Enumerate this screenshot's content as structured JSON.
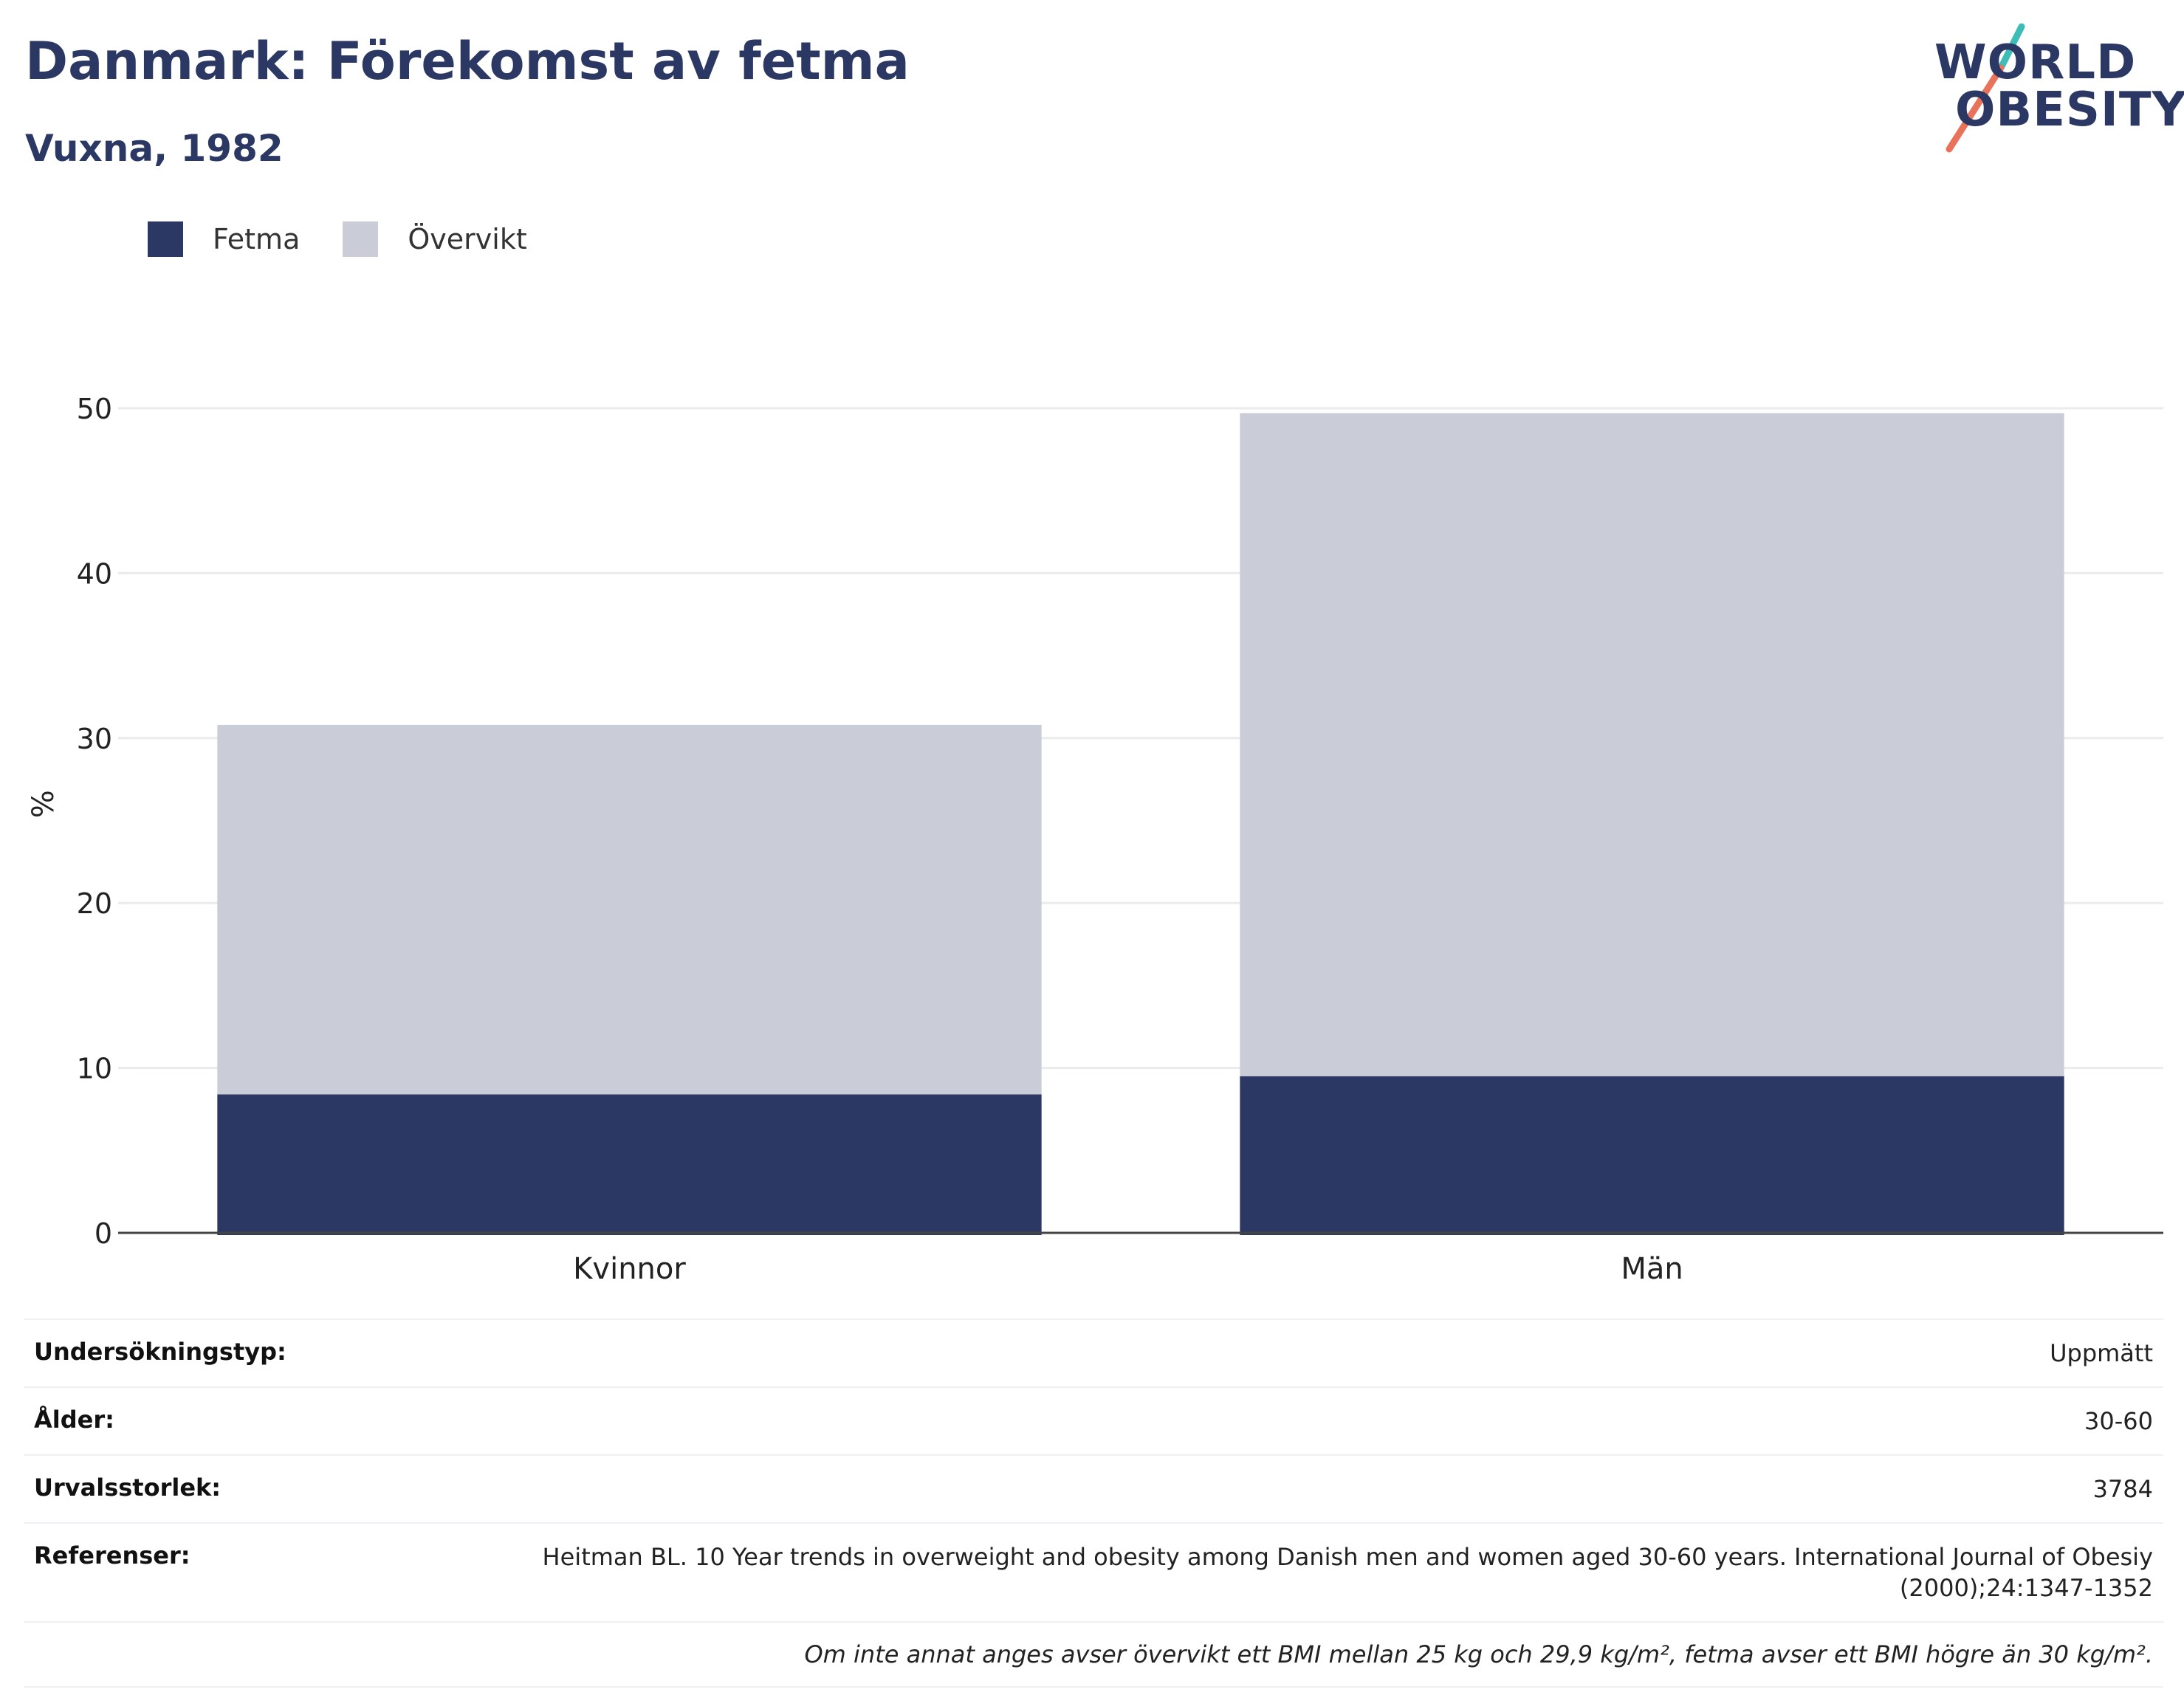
{
  "header": {
    "title": "Danmark: Förekomst av fetma",
    "subtitle": "Vuxna, 1982"
  },
  "logo": {
    "line1": "WORLD",
    "line2": "OBESITY",
    "colors": {
      "text": "#2c3864",
      "slash_top": "#3dbdb6",
      "slash_bottom": "#e8735a"
    }
  },
  "legend": {
    "items": [
      {
        "label": "Fetma",
        "color": "#2c3864"
      },
      {
        "label": "Övervikt",
        "color": "#caccd8"
      }
    ]
  },
  "chart_data": {
    "type": "bar",
    "stacked": true,
    "categories": [
      "Kvinnor",
      "Män"
    ],
    "series": [
      {
        "name": "Fetma",
        "color": "#2c3864",
        "values": [
          8.4,
          9.5
        ]
      },
      {
        "name": "Övervikt",
        "color": "#caccd8",
        "values": [
          22.4,
          40.2
        ]
      }
    ],
    "ylabel": "%",
    "ylim": [
      0,
      55
    ],
    "yticks": [
      0,
      10,
      20,
      30,
      40,
      50
    ],
    "grid": true,
    "legend_position": "top-left"
  },
  "info": {
    "rows": [
      {
        "label": "Undersökningstyp:",
        "value": "Uppmätt"
      },
      {
        "label": "Ålder:",
        "value": "30-60"
      },
      {
        "label": "Urvalsstorlek:",
        "value": "3784"
      },
      {
        "label": "Referenser:",
        "value": "Heitman BL. 10 Year trends in overweight and obesity among Danish men and women aged 30-60 years. International Journal of Obesiy (2000);24:1347-1352"
      }
    ],
    "note": "Om inte annat anges avser övervikt ett BMI mellan 25 kg och 29,9 kg/m², fetma avser ett BMI högre än 30 kg/m²."
  }
}
